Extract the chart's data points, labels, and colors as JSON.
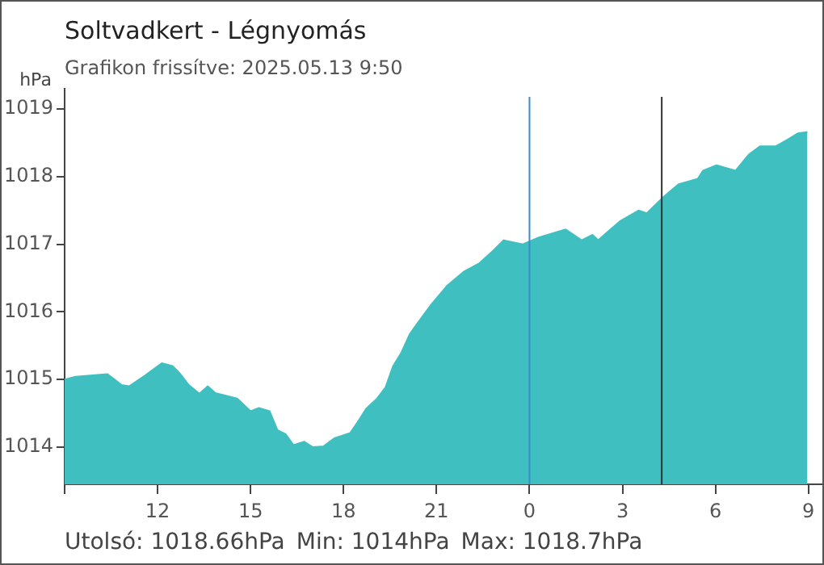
{
  "chart_data": {
    "type": "area",
    "title": "Soltvadkert - Légnyomás",
    "subtitle": "Grafikon frissítve: 2025.05.13 9:50",
    "ylabel": "hPa",
    "annotations": [
      "Utolsó: 1018.66hPa  Min: 1014hPa  Max: 1018.7hPa"
    ],
    "x": [
      "2025-05-12T09:00",
      "2025-05-12T09:21",
      "2025-05-12T10:23",
      "2025-05-12T10:50",
      "2025-05-12T11:05",
      "2025-05-12T11:36",
      "2025-05-12T12:08",
      "2025-05-12T12:29",
      "2025-05-12T12:44",
      "2025-05-12T13:00",
      "2025-05-12T13:21",
      "2025-05-12T13:37",
      "2025-05-12T13:52",
      "2025-05-12T14:34",
      "2025-05-12T15:00",
      "2025-05-12T15:16",
      "2025-05-12T15:37",
      "2025-05-12T15:52",
      "2025-05-12T16:08",
      "2025-05-12T16:23",
      "2025-05-12T16:44",
      "2025-05-12T17:00",
      "2025-05-12T17:21",
      "2025-05-12T17:42",
      "2025-05-12T18:13",
      "2025-05-12T18:29",
      "2025-05-12T18:44",
      "2025-05-12T19:05",
      "2025-05-12T19:21",
      "2025-05-12T19:36",
      "2025-05-12T19:52",
      "2025-05-12T20:08",
      "2025-05-12T20:23",
      "2025-05-12T20:50",
      "2025-05-12T21:21",
      "2025-05-12T21:52",
      "2025-05-12T22:23",
      "2025-05-12T22:49",
      "2025-05-12T23:10",
      "2025-05-12T23:47",
      "2025-05-13T00:18",
      "2025-05-13T01:10",
      "2025-05-13T01:41",
      "2025-05-13T02:02",
      "2025-05-13T02:13",
      "2025-05-13T02:55",
      "2025-05-13T03:31",
      "2025-05-13T03:47",
      "2025-05-13T04:18",
      "2025-05-13T04:49",
      "2025-05-13T05:26",
      "2025-05-13T05:36",
      "2025-05-13T06:02",
      "2025-05-13T06:39",
      "2025-05-13T07:05",
      "2025-05-13T07:26",
      "2025-05-13T07:57",
      "2025-05-13T08:18",
      "2025-05-13T08:39",
      "2025-05-13T08:58"
    ],
    "series": [
      {
        "color": "#40bfc1",
        "values": [
          1015,
          1015.04,
          1015.08,
          1014.92,
          1014.9,
          1015.06,
          1015.24,
          1015.2,
          1015.08,
          1014.92,
          1014.79,
          1014.9,
          1014.8,
          1014.72,
          1014.53,
          1014.58,
          1014.53,
          1014.25,
          1014.19,
          1014.03,
          1014.08,
          1014,
          1014.01,
          1014.13,
          1014.21,
          1014.39,
          1014.57,
          1014.72,
          1014.88,
          1015.2,
          1015.4,
          1015.67,
          1015.83,
          1016.11,
          1016.39,
          1016.59,
          1016.72,
          1016.9,
          1017.06,
          1017,
          1017.1,
          1017.22,
          1017.06,
          1017.14,
          1017.06,
          1017.34,
          1017.5,
          1017.46,
          1017.69,
          1017.89,
          1017.97,
          1018.09,
          1018.17,
          1018.09,
          1018.33,
          1018.45,
          1018.45,
          1018.54,
          1018.64,
          1018.66
        ]
      }
    ],
    "xlim": [
      "2025-05-12T09:00",
      "2025-05-13T09:27"
    ],
    "xticks": [
      {
        "value": "2025-05-12T09:00",
        "label": null
      },
      {
        "value": "2025-05-12T12:00",
        "label": "12"
      },
      {
        "value": "2025-05-12T15:00",
        "label": "15"
      },
      {
        "value": "2025-05-12T18:00",
        "label": "18"
      },
      {
        "value": "2025-05-12T21:00",
        "label": "21"
      },
      {
        "value": "2025-05-13T00:00",
        "label": "0"
      },
      {
        "value": "2025-05-13T03:00",
        "label": "3"
      },
      {
        "value": "2025-05-13T06:00",
        "label": "6"
      },
      {
        "value": "2025-05-13T09:00",
        "label": "9"
      }
    ],
    "ylim": [
      1013.45,
      1019.3
    ],
    "yticks": [
      1014,
      1015,
      1016,
      1017,
      1018,
      1019
    ],
    "ref_lines": [
      {
        "axis": "x",
        "value": "2025-05-13T00:00",
        "color": "#3a8ccc"
      },
      {
        "axis": "x",
        "value": "2025-05-13T04:16",
        "color": "#333333"
      }
    ],
    "grid": false,
    "legend": false
  }
}
